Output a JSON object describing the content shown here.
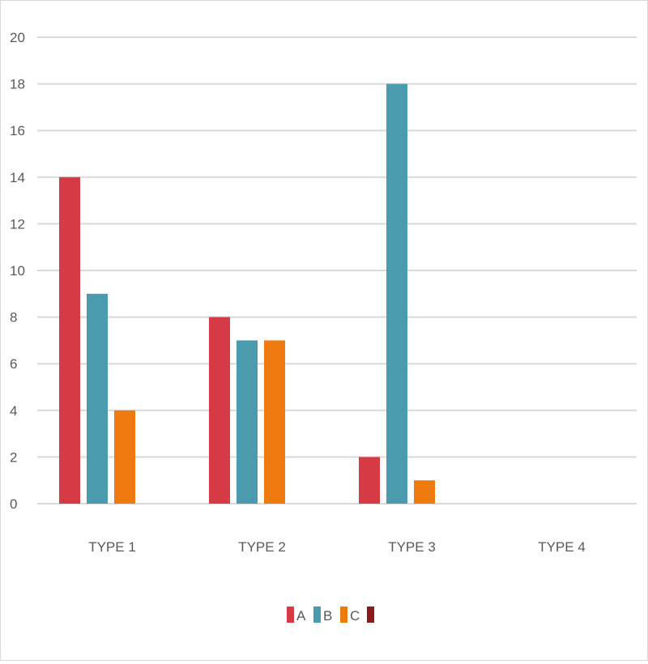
{
  "chart_data": {
    "type": "bar",
    "title": "",
    "xlabel": "",
    "ylabel": "",
    "ylim": [
      0,
      20
    ],
    "yticks": [
      0,
      2,
      4,
      6,
      8,
      10,
      12,
      14,
      16,
      18,
      20
    ],
    "grid": true,
    "legend_position": "bottom",
    "categories": [
      "TYPE 1",
      "TYPE 2",
      "TYPE 3",
      "TYPE 4"
    ],
    "series": [
      {
        "name": "A",
        "color": "#d63a45",
        "values": [
          14,
          8,
          2,
          0
        ]
      },
      {
        "name": "B",
        "color": "#4a9bad",
        "values": [
          9,
          7,
          18,
          0
        ]
      },
      {
        "name": "C",
        "color": "#ee7a10",
        "values": [
          4,
          7,
          1,
          0
        ]
      },
      {
        "name": "",
        "color": "#8b1a1a",
        "values": [
          0,
          0,
          0,
          0
        ]
      }
    ]
  }
}
